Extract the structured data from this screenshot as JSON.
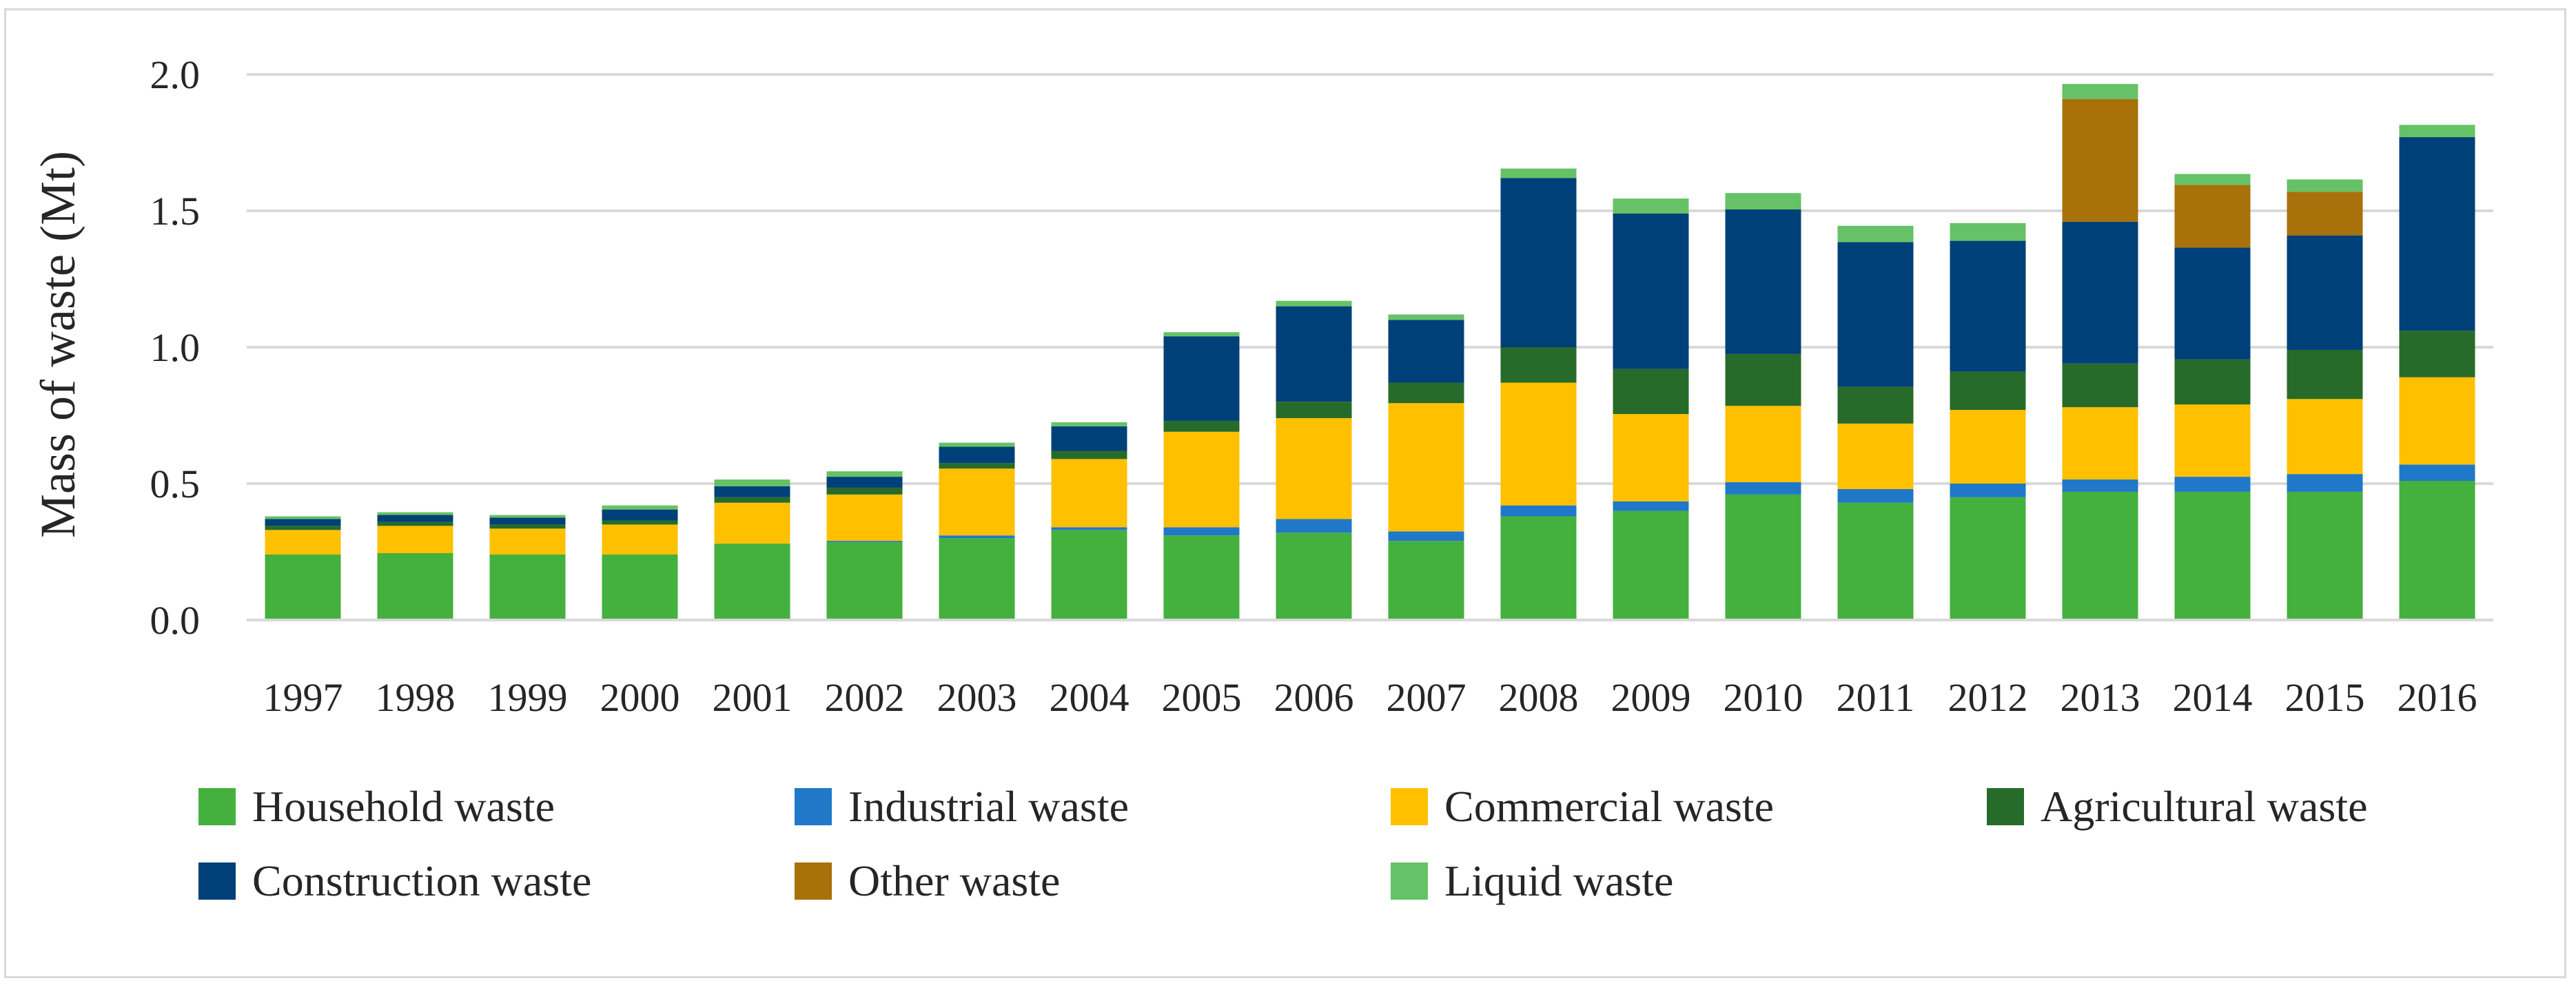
{
  "chart_data": {
    "type": "bar",
    "stacked": true,
    "title": "",
    "xlabel": "",
    "ylabel": "Mass of waste (Mt)",
    "ylim": [
      0,
      2.0
    ],
    "yticks": [
      "0.0",
      "0.5",
      "1.0",
      "1.5",
      "2.0"
    ],
    "grid": true,
    "legend_position": "bottom",
    "categories": [
      "1997",
      "1998",
      "1999",
      "2000",
      "2001",
      "2002",
      "2003",
      "2004",
      "2005",
      "2006",
      "2007",
      "2008",
      "2009",
      "2010",
      "2011",
      "2012",
      "2013",
      "2014",
      "2015",
      "2016"
    ],
    "series": [
      {
        "name": "Household waste",
        "color": "#44b03d",
        "values": [
          0.24,
          0.245,
          0.24,
          0.24,
          0.28,
          0.285,
          0.3,
          0.33,
          0.31,
          0.32,
          0.29,
          0.38,
          0.4,
          0.46,
          0.43,
          0.45,
          0.47,
          0.47,
          0.47,
          0.51
        ]
      },
      {
        "name": "Industrial waste",
        "color": "#1f78c8",
        "values": [
          0.0,
          0.0,
          0.0,
          0.0,
          0.0,
          0.005,
          0.01,
          0.01,
          0.03,
          0.05,
          0.035,
          0.04,
          0.035,
          0.045,
          0.05,
          0.05,
          0.045,
          0.055,
          0.065,
          0.06
        ]
      },
      {
        "name": "Commercial waste",
        "color": "#ffc000",
        "values": [
          0.09,
          0.1,
          0.095,
          0.11,
          0.15,
          0.17,
          0.245,
          0.25,
          0.35,
          0.37,
          0.47,
          0.45,
          0.32,
          0.28,
          0.24,
          0.27,
          0.265,
          0.265,
          0.275,
          0.32
        ]
      },
      {
        "name": "Agricultural waste",
        "color": "#276b2a",
        "values": [
          0.015,
          0.015,
          0.015,
          0.015,
          0.02,
          0.025,
          0.02,
          0.03,
          0.04,
          0.06,
          0.075,
          0.13,
          0.165,
          0.19,
          0.135,
          0.14,
          0.16,
          0.165,
          0.18,
          0.17
        ]
      },
      {
        "name": "Construction waste",
        "color": "#004078",
        "values": [
          0.025,
          0.025,
          0.025,
          0.04,
          0.04,
          0.04,
          0.06,
          0.09,
          0.31,
          0.35,
          0.23,
          0.62,
          0.57,
          0.53,
          0.53,
          0.48,
          0.52,
          0.41,
          0.42,
          0.71
        ]
      },
      {
        "name": "Other waste",
        "color": "#a8710a",
        "values": [
          0,
          0,
          0,
          0,
          0,
          0,
          0,
          0,
          0,
          0,
          0,
          0,
          0,
          0,
          0,
          0,
          0.45,
          0.23,
          0.16,
          0
        ]
      },
      {
        "name": "Liquid waste",
        "color": "#66c266",
        "values": [
          0.01,
          0.01,
          0.01,
          0.015,
          0.025,
          0.02,
          0.015,
          0.015,
          0.015,
          0.02,
          0.02,
          0.035,
          0.055,
          0.06,
          0.06,
          0.065,
          0.055,
          0.04,
          0.045,
          0.045
        ]
      }
    ]
  }
}
